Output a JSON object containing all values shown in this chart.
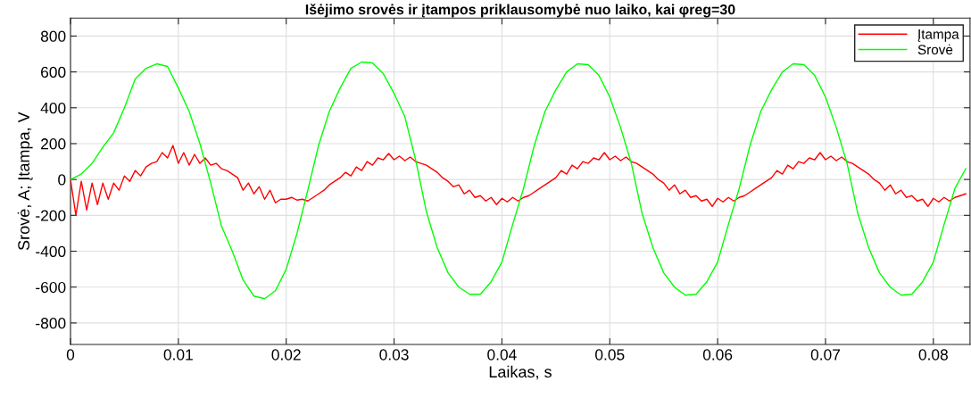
{
  "chart_data": {
    "type": "line",
    "title": "Išėjimo srovės ir įtampos priklausomybė nuo laiko, kai φreg=30",
    "xlabel": "Laikas, s",
    "ylabel": "Srovė, A; Įtampa, V",
    "xlim": [
      0,
      0.0834
    ],
    "ylim": [
      -920,
      900
    ],
    "xticks": [
      0,
      0.01,
      0.02,
      0.03,
      0.04,
      0.05,
      0.06,
      0.07,
      0.08
    ],
    "yticks": [
      -800,
      -600,
      -400,
      -200,
      0,
      200,
      400,
      600,
      800
    ],
    "grid": true,
    "legend": "top right",
    "line_style": "solid",
    "marker": "none",
    "series": [
      {
        "name": "Įtampa",
        "color": "#ff0000",
        "x": [
          0,
          0.0005,
          0.001,
          0.0015,
          0.002,
          0.0025,
          0.003,
          0.0035,
          0.004,
          0.0045,
          0.005,
          0.0055,
          0.006,
          0.0065,
          0.007,
          0.0075,
          0.008,
          0.0085,
          0.009,
          0.0095,
          0.01,
          0.0105,
          0.011,
          0.0115,
          0.012,
          0.0125,
          0.013,
          0.0135,
          0.014,
          0.0145,
          0.015,
          0.0155,
          0.016,
          0.0165,
          0.017,
          0.0175,
          0.018,
          0.0185,
          0.019,
          0.0195,
          0.02,
          0.0205,
          0.021,
          0.0215,
          0.022,
          0.0225,
          0.023,
          0.0235,
          0.024,
          0.0245,
          0.025,
          0.0255,
          0.026,
          0.0265,
          0.027,
          0.0275,
          0.028,
          0.0285,
          0.029,
          0.0295,
          0.03,
          0.0305,
          0.031,
          0.0315,
          0.032,
          0.0325,
          0.033,
          0.0335,
          0.034,
          0.0345,
          0.035,
          0.0355,
          0.036,
          0.0365,
          0.037,
          0.0375,
          0.038,
          0.0385,
          0.039,
          0.0395,
          0.04,
          0.0405,
          0.041,
          0.0415,
          0.042,
          0.0425,
          0.043,
          0.0435,
          0.044,
          0.0445,
          0.045,
          0.0455,
          0.046,
          0.0465,
          0.047,
          0.0475,
          0.048,
          0.0485,
          0.049,
          0.0495,
          0.05,
          0.0505,
          0.051,
          0.0515,
          0.052,
          0.0525,
          0.053,
          0.0535,
          0.054,
          0.0545,
          0.055,
          0.0555,
          0.056,
          0.0565,
          0.057,
          0.0575,
          0.058,
          0.0585,
          0.059,
          0.0595,
          0.06,
          0.0605,
          0.061,
          0.0615,
          0.062,
          0.0625,
          0.063,
          0.0635,
          0.064,
          0.0645,
          0.065,
          0.0655,
          0.066,
          0.0665,
          0.067,
          0.0675,
          0.068,
          0.0685,
          0.069,
          0.0695,
          0.07,
          0.0705,
          0.071,
          0.0715,
          0.072,
          0.0725,
          0.073,
          0.0735,
          0.074,
          0.0745,
          0.075,
          0.0755,
          0.076,
          0.0765,
          0.077,
          0.0775,
          0.078,
          0.0785,
          0.079,
          0.0795,
          0.08,
          0.0805,
          0.081,
          0.0815,
          0.082,
          0.0825,
          0.083
        ],
        "values": [
          0,
          -200,
          -10,
          -170,
          -20,
          -140,
          -20,
          -110,
          -20,
          -60,
          20,
          -10,
          50,
          20,
          70,
          90,
          100,
          150,
          120,
          190,
          90,
          150,
          80,
          140,
          90,
          120,
          80,
          90,
          60,
          50,
          30,
          10,
          -60,
          -20,
          -80,
          -40,
          -110,
          -60,
          -130,
          -110,
          -110,
          -100,
          -115,
          -110,
          -120,
          -100,
          -80,
          -60,
          -30,
          -10,
          10,
          40,
          20,
          70,
          50,
          100,
          80,
          120,
          110,
          145,
          110,
          130,
          105,
          125,
          100,
          90,
          80,
          60,
          40,
          10,
          -10,
          -40,
          -30,
          -80,
          -60,
          -100,
          -90,
          -120,
          -100,
          -140,
          -105,
          -125,
          -100,
          -120,
          -100,
          -90,
          -70,
          -50,
          -30,
          -10,
          10,
          50,
          30,
          80,
          60,
          100,
          90,
          120,
          110,
          150,
          110,
          130,
          105,
          125,
          100,
          90,
          70,
          50,
          30,
          0,
          -20,
          -60,
          -30,
          -80,
          -60,
          -100,
          -90,
          -120,
          -110,
          -150,
          -105,
          -125,
          -100,
          -120,
          -100,
          -90,
          -70,
          -50,
          -30,
          -10,
          10,
          50,
          30,
          80,
          60,
          100,
          90,
          120,
          110,
          150,
          110,
          130,
          105,
          125,
          100,
          90,
          70,
          50,
          30,
          0,
          -20,
          -60,
          -30,
          -80,
          -60,
          -100,
          -90,
          -120,
          -110,
          -150,
          -105,
          -125,
          -100,
          -120,
          -100,
          -90,
          -80
        ]
      },
      {
        "name": "Srovė",
        "color": "#00ff00",
        "x": [
          0,
          0.001,
          0.002,
          0.003,
          0.004,
          0.005,
          0.006,
          0.007,
          0.008,
          0.009,
          0.01,
          0.011,
          0.012,
          0.013,
          0.014,
          0.015,
          0.016,
          0.017,
          0.018,
          0.019,
          0.02,
          0.021,
          0.022,
          0.023,
          0.024,
          0.025,
          0.026,
          0.027,
          0.028,
          0.029,
          0.03,
          0.031,
          0.032,
          0.033,
          0.034,
          0.035,
          0.036,
          0.037,
          0.038,
          0.039,
          0.04,
          0.041,
          0.042,
          0.043,
          0.044,
          0.045,
          0.046,
          0.047,
          0.048,
          0.049,
          0.05,
          0.051,
          0.052,
          0.053,
          0.054,
          0.055,
          0.056,
          0.057,
          0.058,
          0.059,
          0.06,
          0.061,
          0.062,
          0.063,
          0.064,
          0.065,
          0.066,
          0.067,
          0.068,
          0.069,
          0.07,
          0.071,
          0.072,
          0.073,
          0.074,
          0.075,
          0.076,
          0.077,
          0.078,
          0.079,
          0.08,
          0.081,
          0.082,
          0.083
        ],
        "values": [
          0,
          30,
          90,
          180,
          260,
          400,
          560,
          620,
          645,
          630,
          510,
          380,
          200,
          -20,
          -260,
          -400,
          -560,
          -650,
          -665,
          -620,
          -500,
          -300,
          -60,
          190,
          380,
          510,
          620,
          655,
          650,
          590,
          480,
          350,
          110,
          -180,
          -380,
          -520,
          -600,
          -640,
          -640,
          -570,
          -460,
          -250,
          -50,
          190,
          380,
          500,
          600,
          645,
          640,
          580,
          460,
          290,
          90,
          -190,
          -380,
          -520,
          -600,
          -645,
          -640,
          -570,
          -460,
          -250,
          -50,
          190,
          380,
          500,
          600,
          645,
          640,
          580,
          460,
          290,
          90,
          -190,
          -380,
          -520,
          -600,
          -645,
          -640,
          -570,
          -460,
          -250,
          -50,
          60
        ]
      }
    ]
  }
}
